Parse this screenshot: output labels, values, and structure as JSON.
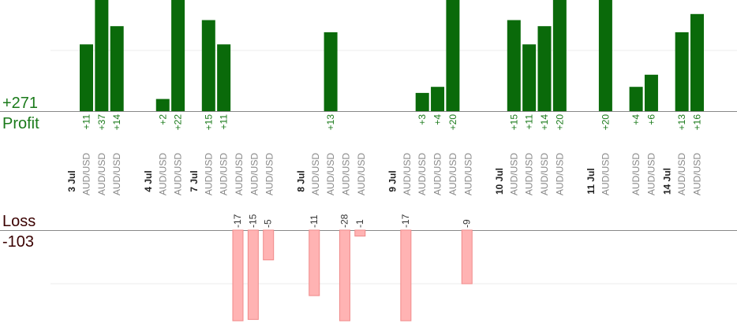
{
  "chart_data": {
    "type": "bar",
    "profit_label": "Profit",
    "loss_label": "Loss",
    "profit_total": "+271",
    "loss_total": "-103",
    "colors": {
      "profit": "#0a6a0a",
      "profit_text": "#1a7a1a",
      "loss": "#ffb3b3",
      "loss_border": "#f08a8a",
      "loss_text": "#333333",
      "summary_loss": "#3a0000"
    },
    "date_labels": [
      {
        "label": "3 Jul",
        "before_slot": 0
      },
      {
        "label": "4 Jul",
        "before_slot": 5
      },
      {
        "label": "7 Jul",
        "before_slot": 8
      },
      {
        "label": "8 Jul",
        "before_slot": 15
      },
      {
        "label": "9 Jul",
        "before_slot": 21
      },
      {
        "label": "10 Jul",
        "before_slot": 28
      },
      {
        "label": "11 Jul",
        "before_slot": 34
      },
      {
        "label": "14 Jul",
        "before_slot": 39
      }
    ],
    "trades": [
      {
        "pair": "AUD/USD",
        "value": 11,
        "label": "+11"
      },
      {
        "pair": "AUD/USD",
        "value": 37,
        "label": "+37"
      },
      {
        "pair": "AUD/USD",
        "value": 14,
        "label": "+14"
      },
      {
        "pair": "",
        "value": null,
        "label": ""
      },
      {
        "pair": "",
        "value": null,
        "label": ""
      },
      {
        "pair": "AUD/USD",
        "value": 2,
        "label": "+2"
      },
      {
        "pair": "AUD/USD",
        "value": 22,
        "label": "+22"
      },
      {
        "pair": "",
        "value": null,
        "label": ""
      },
      {
        "pair": "AUD/USD",
        "value": 15,
        "label": "+15"
      },
      {
        "pair": "AUD/USD",
        "value": 11,
        "label": "+11"
      },
      {
        "pair": "AUD/USD",
        "value": -17,
        "label": "-17"
      },
      {
        "pair": "AUD/USD",
        "value": -15,
        "label": "-15"
      },
      {
        "pair": "AUD/USD",
        "value": -5,
        "label": "-5"
      },
      {
        "pair": "",
        "value": null,
        "label": ""
      },
      {
        "pair": "",
        "value": null,
        "label": ""
      },
      {
        "pair": "AUD/USD",
        "value": -11,
        "label": "-11"
      },
      {
        "pair": "AUD/USD",
        "value": 13,
        "label": "+13"
      },
      {
        "pair": "AUD/USD",
        "value": -28,
        "label": "-28"
      },
      {
        "pair": "AUD/USD",
        "value": -1,
        "label": "-1"
      },
      {
        "pair": "",
        "value": null,
        "label": ""
      },
      {
        "pair": "",
        "value": null,
        "label": ""
      },
      {
        "pair": "AUD/USD",
        "value": -17,
        "label": "-17"
      },
      {
        "pair": "AUD/USD",
        "value": 3,
        "label": "+3"
      },
      {
        "pair": "AUD/USD",
        "value": 4,
        "label": "+4"
      },
      {
        "pair": "AUD/USD",
        "value": 20,
        "label": "+20"
      },
      {
        "pair": "AUD/USD",
        "value": -9,
        "label": "-9"
      },
      {
        "pair": "",
        "value": null,
        "label": ""
      },
      {
        "pair": "",
        "value": null,
        "label": ""
      },
      {
        "pair": "AUD/USD",
        "value": 15,
        "label": "+15"
      },
      {
        "pair": "AUD/USD",
        "value": 11,
        "label": "+11"
      },
      {
        "pair": "AUD/USD",
        "value": 14,
        "label": "+14"
      },
      {
        "pair": "AUD/USD",
        "value": 20,
        "label": "+20"
      },
      {
        "pair": "",
        "value": null,
        "label": ""
      },
      {
        "pair": "",
        "value": null,
        "label": ""
      },
      {
        "pair": "AUD/USD",
        "value": 20,
        "label": "+20"
      },
      {
        "pair": "",
        "value": null,
        "label": ""
      },
      {
        "pair": "AUD/USD",
        "value": 4,
        "label": "+4"
      },
      {
        "pair": "AUD/USD",
        "value": 6,
        "label": "+6"
      },
      {
        "pair": "",
        "value": null,
        "label": ""
      },
      {
        "pair": "AUD/USD",
        "value": 13,
        "label": "+13"
      },
      {
        "pair": "AUD/USD",
        "value": 16,
        "label": "+16"
      }
    ],
    "profit_axis_max": 20,
    "loss_axis_min": -15,
    "grid": true
  }
}
